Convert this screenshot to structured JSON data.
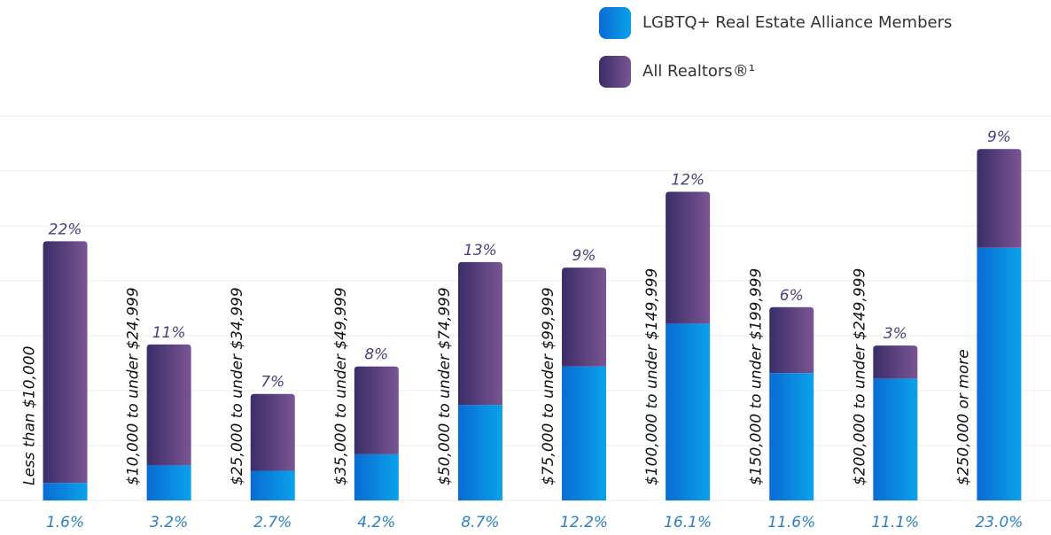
{
  "chart_data": {
    "type": "stacked_bar",
    "categories": [
      "Less than $10,000",
      "$10,000 to under $24,999",
      "$25,000 to under $34,999",
      "$35,000 to under $49,999",
      "$50,000 to under $74,999",
      "$75,000 to under $99,999",
      "$100,000 to under $149,999",
      "$150,000 to under $199,999",
      "$200,000 to under $249,999",
      "$250,000 or more"
    ],
    "series": [
      {
        "name": "LGBTQ+ Real Estate Alliance Members",
        "color": "#0a8ee0",
        "values": [
          1.6,
          3.2,
          2.7,
          4.2,
          8.7,
          12.2,
          16.1,
          11.6,
          11.1,
          23.0
        ],
        "value_labels": [
          "1.6%",
          "3.2%",
          "2.7%",
          "4.2%",
          "8.7%",
          "12.2%",
          "16.1%",
          "11.6%",
          "11.1%",
          "23.0%"
        ]
      },
      {
        "name": "All Realtors®¹",
        "color": "#4f3b7a",
        "values": [
          22,
          11,
          7,
          8,
          13,
          9,
          12,
          6,
          3,
          9
        ],
        "value_labels": [
          "22%",
          "11%",
          "7%",
          "8%",
          "13%",
          "9%",
          "12%",
          "6%",
          "3%",
          "9%"
        ]
      }
    ],
    "ylim": [
      0,
      35
    ],
    "yticks": [
      0,
      5,
      10,
      15,
      20,
      25,
      30,
      35
    ],
    "grid": true,
    "legend": "top-right"
  }
}
